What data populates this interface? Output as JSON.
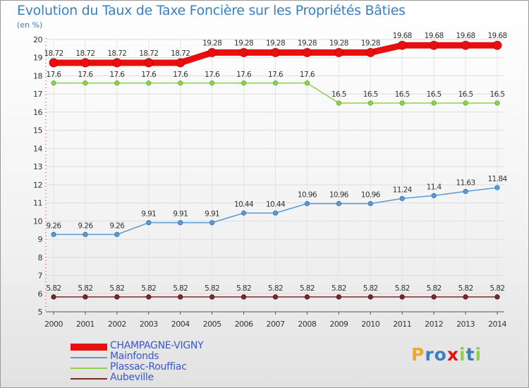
{
  "chart_data": {
    "type": "line",
    "title": "Evolution du Taux de Taxe Foncière sur les Propriétés Bâties",
    "subtitle": "(en %)",
    "x": [
      "2000",
      "2001",
      "2002",
      "2003",
      "2004",
      "2005",
      "2006",
      "2007",
      "2008",
      "2009",
      "2010",
      "2011",
      "2012",
      "2013",
      "2014"
    ],
    "ylim": [
      5,
      20
    ],
    "yticks": [
      5,
      6,
      7,
      8,
      9,
      10,
      11,
      12,
      13,
      14,
      15,
      16,
      17,
      18,
      19,
      20
    ],
    "series": [
      {
        "name": "CHAMPAGNE-VIGNY",
        "color": "#e8100f",
        "values": [
          18.72,
          18.72,
          18.72,
          18.72,
          18.72,
          19.28,
          19.28,
          19.28,
          19.28,
          19.28,
          19.28,
          19.68,
          19.68,
          19.68,
          19.68
        ],
        "labels": [
          "18.72",
          "18.72",
          "18.72",
          "18.72",
          "18.72",
          "19.28",
          "19.28",
          "19.28",
          "19.28",
          "19.28",
          "19.28",
          "19.68",
          "19.68",
          "19.68",
          "19.68"
        ]
      },
      {
        "name": "Mainfonds",
        "color": "#5b9bd5",
        "values": [
          9.26,
          9.26,
          9.26,
          9.91,
          9.91,
          9.91,
          10.44,
          10.44,
          10.96,
          10.96,
          10.96,
          11.24,
          11.4,
          11.63,
          11.84
        ],
        "labels": [
          "9.26",
          "9.26",
          "9.26",
          "9.91",
          "9.91",
          "9.91",
          "10.44",
          "10.44",
          "10.96",
          "10.96",
          "10.96",
          "11.24",
          "11.4",
          "11.63",
          "11.84"
        ]
      },
      {
        "name": "Plassac-Rouffiac",
        "color": "#8fd14f",
        "values": [
          17.6,
          17.6,
          17.6,
          17.6,
          17.6,
          17.6,
          17.6,
          17.6,
          17.6,
          16.5,
          16.5,
          16.5,
          16.5,
          16.5,
          16.5
        ],
        "labels": [
          "17.6",
          "17.6",
          "17.6",
          "17.6",
          "17.6",
          "17.6",
          "17.6",
          "17.6",
          "17.6",
          "16.5",
          "16.5",
          "16.5",
          "16.5",
          "16.5",
          "16.5"
        ]
      },
      {
        "name": "Aubeville",
        "color": "#7a2a2a",
        "values": [
          5.82,
          5.82,
          5.82,
          5.82,
          5.82,
          5.82,
          5.82,
          5.82,
          5.82,
          5.82,
          5.82,
          5.82,
          5.82,
          5.82,
          5.82
        ],
        "labels": [
          "5.82",
          "5.82",
          "5.82",
          "5.82",
          "5.82",
          "5.82",
          "5.82",
          "5.82",
          "5.82",
          "5.82",
          "5.82",
          "5.82",
          "5.82",
          "5.82",
          "5.82"
        ]
      }
    ],
    "legend": {
      "placement": "bottom-left"
    }
  },
  "logo": {
    "letters": [
      "P",
      "r",
      "o",
      "x",
      "i",
      "t",
      "i"
    ],
    "colors": [
      "#f5a623",
      "#3a7fc0",
      "#3a7fc0",
      "#e8100f",
      "#8fd14f",
      "#3a7fc0",
      "#8fd14f"
    ]
  }
}
